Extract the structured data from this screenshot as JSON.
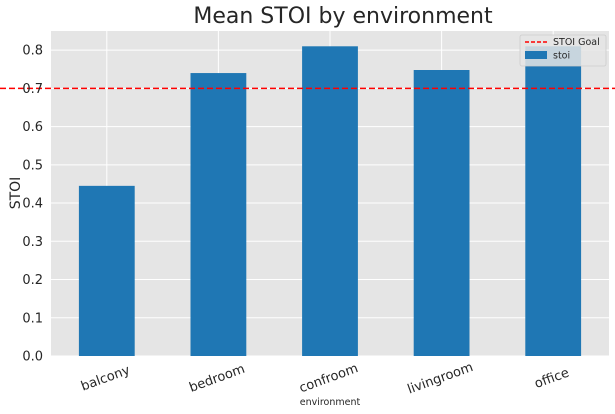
{
  "chart_data": {
    "type": "bar",
    "title": "Mean STOI by environment",
    "xlabel": "environment",
    "ylabel": "STOI",
    "categories": [
      "balcony",
      "bedroom",
      "confroom",
      "livingroom",
      "office"
    ],
    "series": [
      {
        "name": "stoi",
        "values": [
          0.445,
          0.74,
          0.81,
          0.748,
          0.81
        ],
        "color": "#1f77b4"
      }
    ],
    "reference_lines": [
      {
        "name": "STOI Goal",
        "y": 0.7,
        "color": "#ff0000",
        "style": "dashed"
      }
    ],
    "ylim": [
      0,
      0.85
    ],
    "yticks": [
      0.0,
      0.1,
      0.2,
      0.3,
      0.4,
      0.5,
      0.6,
      0.7,
      0.8
    ],
    "ytick_labels": [
      "0.0",
      "0.1",
      "0.2",
      "0.3",
      "0.4",
      "0.5",
      "0.6",
      "0.7",
      "0.8"
    ],
    "grid": true,
    "legend": "top-right",
    "background_color": "#e5e5e5",
    "grid_color": "#ffffff"
  }
}
